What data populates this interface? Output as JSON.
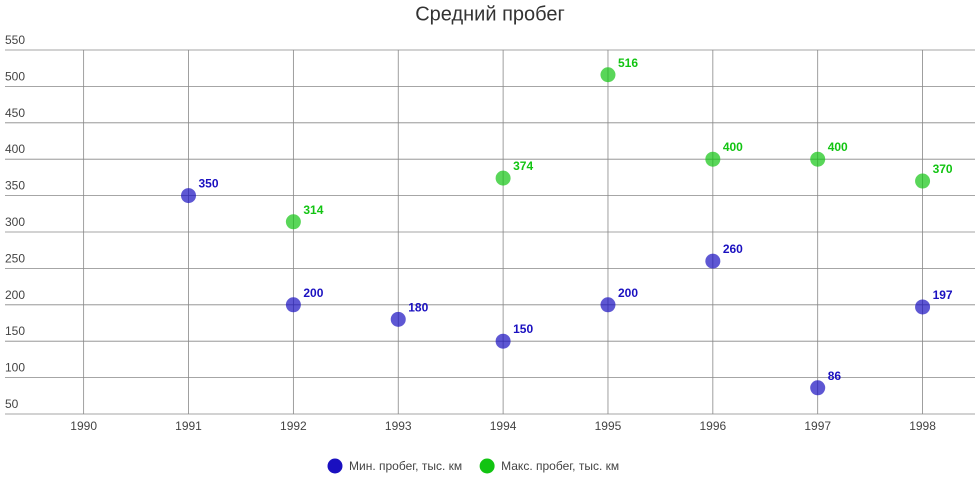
{
  "chart_data": {
    "type": "scatter",
    "title": "Средний пробег",
    "xlim": [
      1989.25,
      1998.5
    ],
    "xticks": [
      1990,
      1991,
      1992,
      1993,
      1994,
      1995,
      1996,
      1997,
      1998
    ],
    "ylim": [
      50,
      550
    ],
    "yticks": [
      50,
      100,
      150,
      200,
      250,
      300,
      350,
      400,
      450,
      500,
      550
    ],
    "grid": true,
    "legend": "bottom",
    "series": [
      {
        "name": "Мин. пробег, тыс. км",
        "color": "#1a10c0",
        "x": [
          1991,
          1992,
          1993,
          1994,
          1995,
          1996,
          1997,
          1998
        ],
        "values": [
          350,
          200,
          180,
          150,
          200,
          260,
          86,
          197
        ]
      },
      {
        "name": "Макс. пробег, тыс. км",
        "color": "#12c412",
        "x": [
          1992,
          1994,
          1995,
          1996,
          1997,
          1998
        ],
        "values": [
          314,
          374,
          516,
          400,
          400,
          370
        ]
      }
    ]
  }
}
